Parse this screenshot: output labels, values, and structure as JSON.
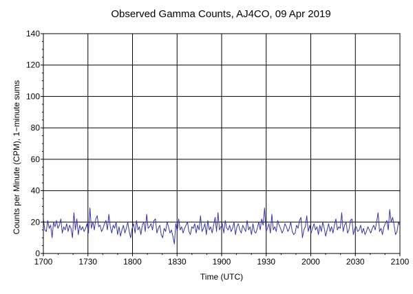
{
  "chart_data": {
    "type": "line",
    "title": "Observed Gamma Counts, AJ4CO, 09 Apr 2019",
    "xlabel": "Time (UTC)",
    "ylabel": "Counts per Minute (CPM), 1−minute sums",
    "xlim": [
      0,
      240
    ],
    "ylim": [
      0,
      140
    ],
    "x_ticks": [
      {
        "value": 0,
        "label": "1700"
      },
      {
        "value": 30,
        "label": "1730"
      },
      {
        "value": 60,
        "label": "1800"
      },
      {
        "value": 90,
        "label": "1830"
      },
      {
        "value": 120,
        "label": "1900"
      },
      {
        "value": 150,
        "label": "1930"
      },
      {
        "value": 180,
        "label": "2000"
      },
      {
        "value": 210,
        "label": "2030"
      },
      {
        "value": 240,
        "label": "2100"
      }
    ],
    "y_ticks": [
      {
        "value": 0,
        "label": "0"
      },
      {
        "value": 20,
        "label": "20"
      },
      {
        "value": 40,
        "label": "40"
      },
      {
        "value": 60,
        "label": "60"
      },
      {
        "value": 80,
        "label": "80"
      },
      {
        "value": 100,
        "label": "100"
      },
      {
        "value": 120,
        "label": "120"
      },
      {
        "value": 140,
        "label": "140"
      }
    ],
    "grid": true,
    "series_color": "#3333aa",
    "series": [
      {
        "values": [
          22,
          15,
          14,
          21,
          16,
          18,
          10,
          20,
          17,
          21,
          16,
          18,
          22,
          13,
          17,
          15,
          19,
          14,
          18,
          16,
          10,
          26,
          15,
          22,
          12,
          18,
          15,
          17,
          14,
          16,
          19,
          13,
          29,
          16,
          20,
          15,
          22,
          24,
          17,
          18,
          14,
          16,
          19,
          21,
          15,
          25,
          17,
          13,
          18,
          16,
          20,
          12,
          17,
          11,
          15,
          18,
          13,
          16,
          20,
          14,
          10,
          16,
          19,
          13,
          21,
          15,
          17,
          12,
          18,
          20,
          14,
          25,
          16,
          17,
          19,
          15,
          21,
          22,
          13,
          16,
          18,
          12,
          10,
          16,
          14,
          20,
          17,
          13,
          15,
          11,
          6,
          19,
          14,
          22,
          15,
          17,
          13,
          16,
          18,
          20,
          14,
          12,
          17,
          16,
          19,
          13,
          18,
          15,
          24,
          14,
          16,
          19,
          12,
          21,
          15,
          17,
          13,
          18,
          23,
          14,
          26,
          15,
          17,
          19,
          13,
          21,
          16,
          15,
          18,
          14,
          16,
          20,
          12,
          17,
          19,
          15,
          13,
          18,
          16,
          14,
          21,
          15,
          17,
          12,
          19,
          14,
          13,
          16,
          20,
          15,
          22,
          18,
          29,
          14,
          16,
          19,
          13,
          25,
          15,
          17,
          14,
          21,
          18,
          16,
          13,
          15,
          19,
          17,
          14,
          16,
          20,
          14,
          12,
          13,
          18,
          16,
          21,
          23,
          10,
          15,
          17,
          24,
          14,
          18,
          13,
          16,
          19,
          15,
          17,
          12,
          18,
          14,
          20,
          16,
          11,
          15,
          19,
          14,
          17,
          13,
          18,
          22,
          15,
          17,
          16,
          26,
          14,
          18,
          20,
          13,
          15,
          21,
          22,
          12,
          16,
          17,
          14,
          15,
          18,
          13,
          16,
          12,
          14,
          17,
          15,
          13,
          16,
          18,
          15,
          20,
          26,
          14,
          16,
          12,
          17,
          19,
          21,
          15,
          28,
          20,
          23,
          18,
          12,
          14,
          20,
          18
        ]
      }
    ]
  }
}
